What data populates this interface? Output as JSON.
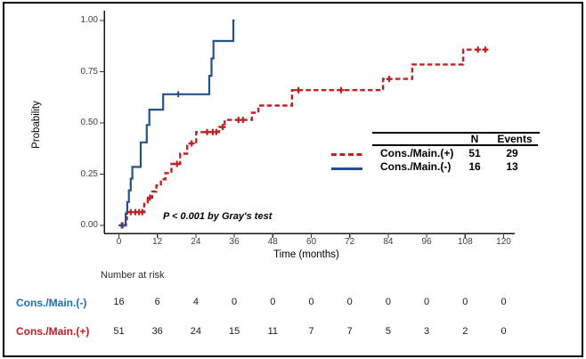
{
  "chart_data": {
    "type": "line",
    "subtype": "step-cumulative-incidence",
    "title": "",
    "xlabel": "Time (months)",
    "ylabel": "Probability",
    "xlim": [
      0,
      126
    ],
    "ylim": [
      0,
      1.0
    ],
    "grid": false,
    "legend_position": "right-center",
    "x_ticks": [
      "0",
      "12",
      "24",
      "36",
      "48",
      "60",
      "72",
      "84",
      "96",
      "108",
      "120"
    ],
    "x_tick_values": [
      0,
      12,
      24,
      36,
      48,
      60,
      72,
      84,
      96,
      108,
      120
    ],
    "y_ticks": [
      "0.00",
      "0.25",
      "0.50",
      "0.75",
      "1.00"
    ],
    "y_tick_values": [
      0,
      0.25,
      0.5,
      0.75,
      1
    ],
    "annotation": "P < 0.001 by Gray's test",
    "legend": {
      "columns": [
        "N",
        "Events"
      ],
      "rows": [
        {
          "label": "Cons./Main.(+)",
          "n": "51",
          "events": "29",
          "line": "dashed"
        },
        {
          "label": "Cons./Main.(-)",
          "n": "16",
          "events": "13",
          "line": "solid"
        }
      ]
    },
    "series": [
      {
        "name": "Cons./Main.(+)",
        "color": "#C32026",
        "line": "dashed",
        "n": 51,
        "events": 29,
        "points": [
          [
            1.4,
            0
          ],
          [
            2.2,
            0.03
          ],
          [
            2.5,
            0.065
          ],
          [
            7.9,
            0.105
          ],
          [
            9.0,
            0.135
          ],
          [
            10.4,
            0.165
          ],
          [
            11.7,
            0.195
          ],
          [
            13.1,
            0.225
          ],
          [
            14.5,
            0.255
          ],
          [
            16.4,
            0.3
          ],
          [
            19.1,
            0.35
          ],
          [
            21.3,
            0.4
          ],
          [
            24.1,
            0.455
          ],
          [
            31.2,
            0.48
          ],
          [
            33.0,
            0.515
          ],
          [
            41.5,
            0.55
          ],
          [
            43.5,
            0.585
          ],
          [
            54.0,
            0.66
          ],
          [
            82.4,
            0.715
          ],
          [
            91.5,
            0.785
          ],
          [
            107.4,
            0.858
          ],
          [
            115.5,
            0.858
          ]
        ],
        "censors": [
          [
            0.9,
            0
          ],
          [
            3.7,
            0.065
          ],
          [
            5.1,
            0.065
          ],
          [
            6.3,
            0.065
          ],
          [
            7.3,
            0.065
          ],
          [
            9.7,
            0.135
          ],
          [
            18.1,
            0.3
          ],
          [
            22.7,
            0.4
          ],
          [
            27.5,
            0.455
          ],
          [
            29.3,
            0.455
          ],
          [
            30.4,
            0.455
          ],
          [
            32.4,
            0.48
          ],
          [
            37.3,
            0.515
          ],
          [
            38.7,
            0.515
          ],
          [
            56.0,
            0.66
          ],
          [
            69.3,
            0.66
          ],
          [
            84.3,
            0.715
          ],
          [
            112.0,
            0.858
          ],
          [
            114.3,
            0.858
          ]
        ]
      },
      {
        "name": "Cons./Main.(-)",
        "color": "#25528A",
        "line": "solid",
        "n": 16,
        "events": 13,
        "points": [
          [
            0.4,
            0
          ],
          [
            2.1,
            0.057
          ],
          [
            2.6,
            0.114
          ],
          [
            3.1,
            0.171
          ],
          [
            3.7,
            0.228
          ],
          [
            4.2,
            0.285
          ],
          [
            6.8,
            0.405
          ],
          [
            8.7,
            0.49
          ],
          [
            9.5,
            0.565
          ],
          [
            13.8,
            0.64
          ],
          [
            28.2,
            0.73
          ],
          [
            28.9,
            0.815
          ],
          [
            29.5,
            0.9
          ],
          [
            35.7,
            1.0
          ],
          [
            36.1,
            1.0
          ]
        ],
        "censors": [
          [
            1.2,
            0
          ],
          [
            18.5,
            0.64
          ]
        ]
      }
    ]
  },
  "risk_table": {
    "title": "Number at risk",
    "rows": [
      {
        "label": "Cons./Main.(-)",
        "color": "#1A6FB5",
        "values": [
          "16",
          "6",
          "4",
          "0",
          "0",
          "0",
          "0",
          "0",
          "0",
          "0",
          "0"
        ]
      },
      {
        "label": "Cons./Main.(+)",
        "color": "#C32026",
        "values": [
          "51",
          "36",
          "24",
          "15",
          "11",
          "7",
          "7",
          "5",
          "3",
          "2",
          "0"
        ]
      }
    ]
  }
}
